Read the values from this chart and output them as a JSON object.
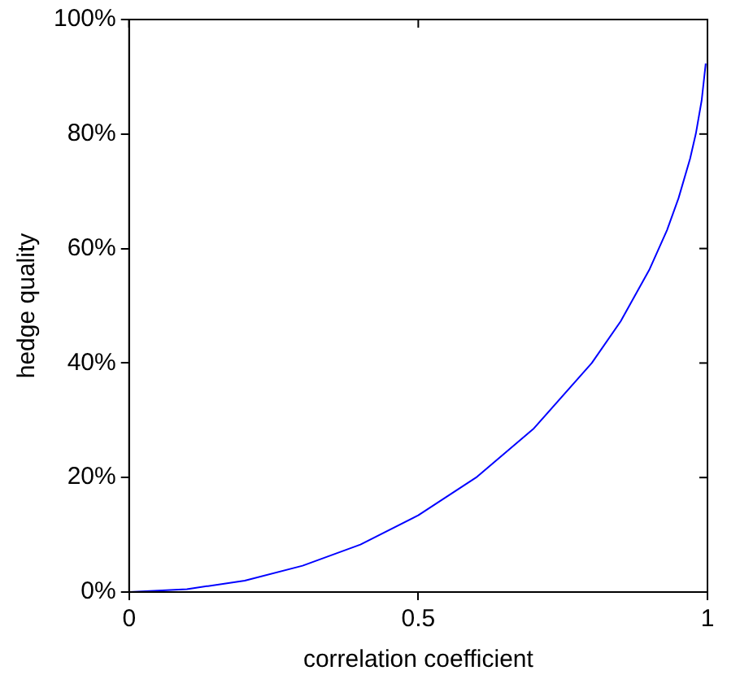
{
  "chart_data": {
    "type": "line",
    "xlabel": "correlation coefficient",
    "ylabel": "hedge quality",
    "x": [
      0,
      0.1,
      0.2,
      0.3,
      0.4,
      0.5,
      0.6,
      0.7,
      0.8,
      0.85,
      0.9,
      0.93,
      0.95,
      0.97,
      0.98,
      0.99,
      0.997
    ],
    "series": [
      {
        "color": "#0000ff",
        "values": [
          0,
          0.5,
          2,
          4.6,
          8.3,
          13.4,
          20,
          28.6,
          40,
          47.3,
          56.4,
          63.2,
          68.8,
          75.7,
          80.1,
          85.9,
          92.3
        ]
      }
    ],
    "xlim": [
      0,
      1
    ],
    "xticks": [
      0,
      0.5,
      1
    ],
    "ylim": [
      0,
      100
    ],
    "yticks": [
      {
        "value": 0,
        "label": "0%"
      },
      {
        "value": 20,
        "label": "20%"
      },
      {
        "value": 40,
        "label": "40%"
      },
      {
        "value": 60,
        "label": "60%"
      },
      {
        "value": 80,
        "label": "80%"
      },
      {
        "value": 100,
        "label": "100%"
      }
    ],
    "marker": "none",
    "line_style": "solid",
    "legend": false
  }
}
